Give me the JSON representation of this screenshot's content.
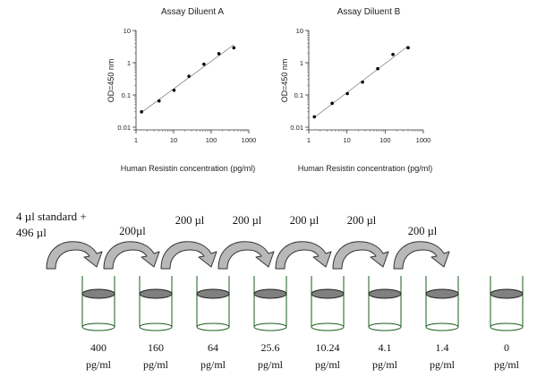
{
  "chart_data": [
    {
      "type": "scatter",
      "title": "Assay Diluent A",
      "xlabel": "Human Resistin concentration (pg/ml)",
      "ylabel": "OD=450 nm",
      "xscale": "log",
      "yscale": "log",
      "xlim": [
        1,
        1000
      ],
      "ylim": [
        0.01,
        10
      ],
      "xticks": [
        "1",
        "10",
        "100",
        "1000"
      ],
      "yticks": [
        "0.01",
        "0.1",
        "1",
        "10"
      ],
      "fit_line": true,
      "x": [
        1.4,
        4.1,
        10.24,
        25.6,
        64,
        160,
        400
      ],
      "y": [
        0.03,
        0.065,
        0.14,
        0.38,
        0.9,
        1.9,
        2.9
      ]
    },
    {
      "type": "scatter",
      "title": "Assay Diluent B",
      "xlabel": "Human Resistin concentration (pg/ml)",
      "ylabel": "OD=450 nm",
      "xscale": "log",
      "yscale": "log",
      "xlim": [
        1,
        1000
      ],
      "ylim": [
        0.01,
        10
      ],
      "xticks": [
        "1",
        "10",
        "100",
        "1000"
      ],
      "yticks": [
        "0.01",
        "0.1",
        "1",
        "10"
      ],
      "fit_line": true,
      "x": [
        1.4,
        4.1,
        10.24,
        25.6,
        64,
        160,
        400
      ],
      "y": [
        0.021,
        0.055,
        0.11,
        0.25,
        0.65,
        1.8,
        2.9
      ]
    }
  ],
  "dilution": {
    "first_label": [
      "4 µl standard +",
      "496 µl"
    ],
    "transfer_labels": [
      "200µl",
      "200 µl",
      "200 µl",
      "200 µl",
      "200 µl",
      "200 µl"
    ],
    "tubes": [
      {
        "value": "400",
        "unit": "pg/ml"
      },
      {
        "value": "160",
        "unit": "pg/ml"
      },
      {
        "value": "64",
        "unit": "pg/ml"
      },
      {
        "value": "25.6",
        "unit": "pg/ml"
      },
      {
        "value": "10.24",
        "unit": "pg/ml"
      },
      {
        "value": "4.1",
        "unit": "pg/ml"
      },
      {
        "value": "1.4",
        "unit": "pg/ml"
      },
      {
        "value": "0",
        "unit": "pg/ml"
      }
    ]
  }
}
